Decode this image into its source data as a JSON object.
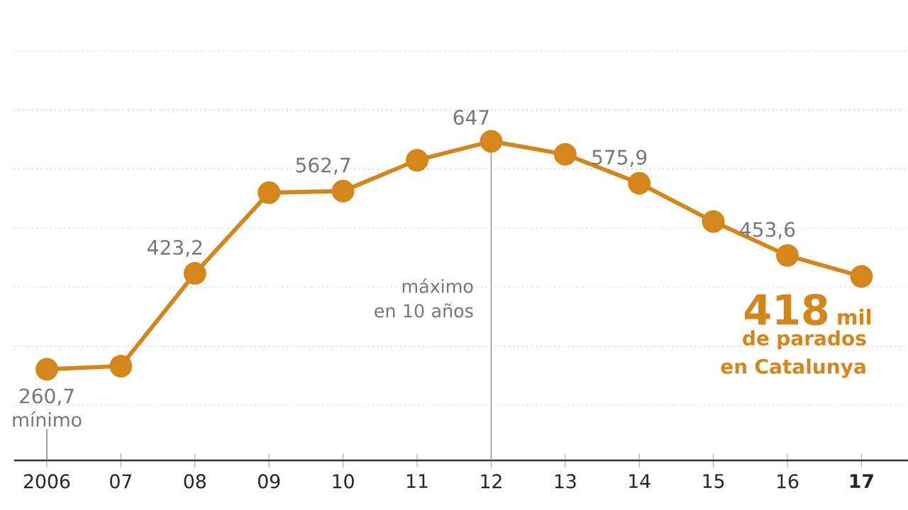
{
  "chart_data": {
    "type": "line",
    "categories": [
      "2006",
      "07",
      "08",
      "09",
      "10",
      "11",
      "12",
      "13",
      "14",
      "15",
      "16",
      "17"
    ],
    "series": [
      {
        "color": "#d4861a",
        "values": [
          260.7,
          266,
          423.2,
          560,
          562.7,
          615,
          647,
          625,
          575.9,
          511,
          453.6,
          418
        ],
        "value_labels": [
          "260,7",
          null,
          "423,2",
          null,
          "562,7",
          null,
          "647",
          null,
          "575,9",
          null,
          "453,6",
          "418"
        ]
      }
    ],
    "grid": "y",
    "tick_labels": "x",
    "marker": "circle",
    "line_style": "solid",
    "ref_lines": [
      {
        "axis": "x",
        "value": "12",
        "color": "#999999"
      }
    ],
    "annotations": [
      "mínimo",
      "máximo en 10 años",
      "mil",
      "de parados en Catalunya"
    ]
  }
}
